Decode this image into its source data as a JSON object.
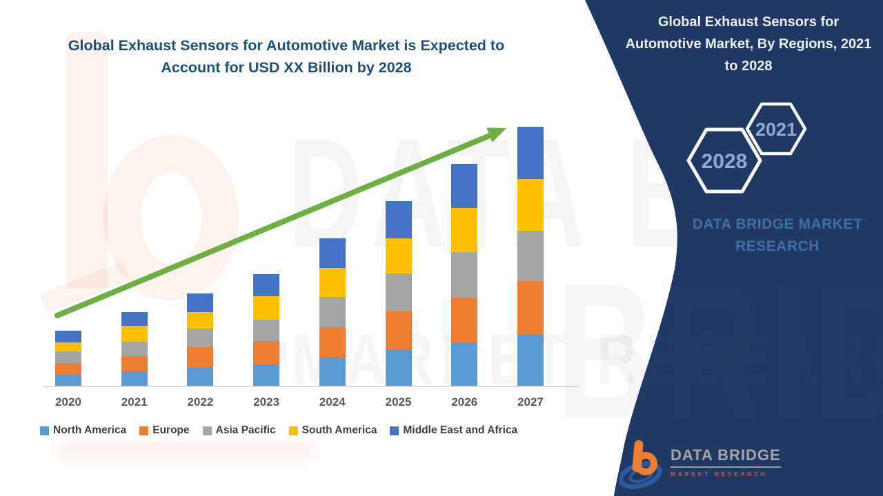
{
  "main_title": {
    "line1": "Global Exhaust Sensors for Automotive Market is Expected to",
    "line2": "Account for USD XX Billion by 2028"
  },
  "side_panel": {
    "bg_color": "#1F3864",
    "title": "Global Exhaust Sensors for Automotive Market, By Regions, 2021 to 2028",
    "hexagon_small_year": "2021",
    "hexagon_large_year": "2028",
    "hexagon_text_color": "#8EAADB",
    "brand_caption": "DATA BRIDGE MARKET RESEARCH"
  },
  "footer_logo": {
    "brand": "DATA BRIDGE",
    "sub_brand": "MARKET RESEARCH"
  },
  "watermark": {
    "line1": "DATA BRIDGE",
    "line2": "MARKET RESEARCH",
    "fragment": "BRIDGE"
  },
  "colors": {
    "title_text": "#1F4E79",
    "navy_panel": "#1F3864",
    "trend_arrow": "#6FAE44",
    "axis_line": "#D6D6D6",
    "tick_label": "#595959",
    "legend_label": "#404040"
  },
  "chart_data": {
    "type": "bar",
    "stacked": true,
    "title": "Global Exhaust Sensors for Automotive Market is Expected to Account for USD XX Billion by 2028",
    "categories": [
      "2020",
      "2021",
      "2022",
      "2023",
      "2024",
      "2025",
      "2026",
      "2027"
    ],
    "series": [
      {
        "name": "North America",
        "color": "#5B9BD5",
        "values": [
          16,
          21,
          27,
          31,
          41,
          53,
          63,
          75
        ]
      },
      {
        "name": "Europe",
        "color": "#ED7D31",
        "values": [
          17,
          22,
          29,
          34,
          44,
          55,
          65,
          77
        ]
      },
      {
        "name": "Asia Pacific",
        "color": "#A5A5A5",
        "values": [
          17,
          21,
          27,
          31,
          44,
          55,
          66,
          73
        ]
      },
      {
        "name": "South America",
        "color": "#FFC000",
        "values": [
          13,
          23,
          24,
          34,
          42,
          51,
          64,
          75
        ]
      },
      {
        "name": "Middle East and Africa",
        "color": "#4472C4",
        "values": [
          17,
          20,
          27,
          32,
          43,
          54,
          64,
          76
        ]
      }
    ],
    "stack_totals": [
      80,
      107,
      134,
      162,
      214,
      268,
      322,
      376
    ],
    "y_axis_visible": false,
    "grid": false,
    "legend_position": "bottom",
    "trend_arrow": {
      "color": "#6FAE44",
      "from_category": "2020",
      "to_category": "2027"
    }
  }
}
